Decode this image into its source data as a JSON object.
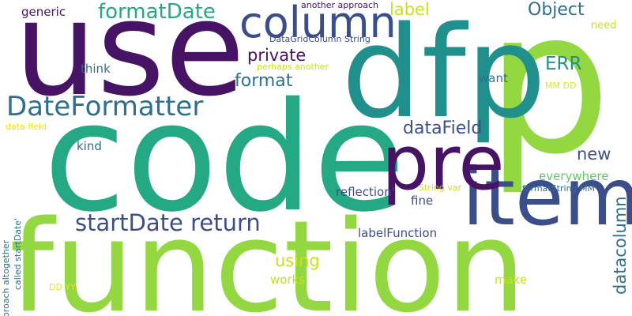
{
  "palette": {
    "dark_purple": "#471365",
    "indigo": "#3b4e8a",
    "slate_blue": "#2c6f8e",
    "teal": "#21908c",
    "sea_green": "#25a884",
    "green": "#5ec962",
    "lime": "#93d741",
    "yellow": "#c8e020",
    "light_yellow": "#e6e419"
  },
  "words": {
    "function": "function",
    "code": "code",
    "use": "use",
    "p": "p",
    "dfp": "dfp",
    "item": "item",
    "pre": "pre",
    "column": "column",
    "DateFormatter": "DateFormatter",
    "startDate_return": "startDate return",
    "formatDate": "formatDate",
    "Object": "Object",
    "label": "label",
    "private": "private",
    "format": "format",
    "dataField": "dataField",
    "datacolumn": "datacolumn",
    "ERR": "ERR",
    "new": "new",
    "using": "using",
    "generic": "generic",
    "another_approach": "another approach",
    "DataGridColumn_String": "DataGridColumn String",
    "perhaps_another": "perhaps another",
    "think": "think",
    "want": "want",
    "need": "need",
    "MM_DD": "MM DD",
    "kind": "kind",
    "data_field": "data field",
    "approach_altogether": "approach altogether",
    "called_startDate": "called startDate'",
    "everywhere": "everywhere",
    "reflection": "reflection'",
    "fine": "fine",
    "labelFunction": "labelFunction",
    "String_var": "String var",
    "formatString_MM": "formatString MM",
    "works": "works",
    "make": "make",
    "DD_YY": "DD YY"
  }
}
